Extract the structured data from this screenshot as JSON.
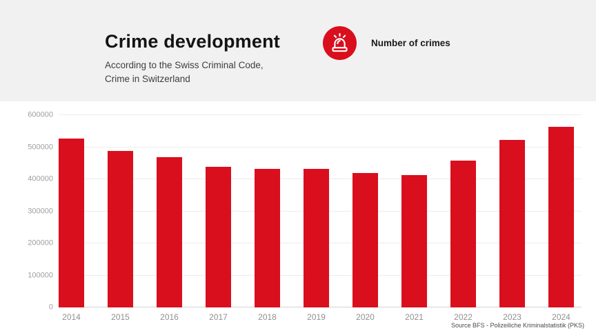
{
  "header": {
    "title": "Crime development",
    "subtitle_line1": "According to the Swiss Criminal Code,",
    "subtitle_line2": "Crime in Switzerland",
    "legend_label": "Number of crimes",
    "legend_icon": "siren-icon",
    "legend_color": "#d90f1e"
  },
  "footer": {
    "source": "Source BFS - Polizeiliche Kriminalstatistik (PKS)"
  },
  "colors": {
    "accent_red": "#d90f1e",
    "header_background": "#f1f1f1",
    "grid_line": "#ececec",
    "axis_text": "#9e9e9e"
  },
  "chart_data": {
    "type": "bar",
    "title": "Crime development",
    "subtitle": "According to the Swiss Criminal Code, Crime in Switzerland",
    "legend": "Number of crimes",
    "categories": [
      "2014",
      "2015",
      "2016",
      "2017",
      "2018",
      "2019",
      "2020",
      "2021",
      "2022",
      "2023",
      "2024"
    ],
    "values": [
      526000,
      488000,
      468000,
      438000,
      433000,
      432000,
      420000,
      414000,
      458000,
      523000,
      564000
    ],
    "xlabel": "",
    "ylabel": "",
    "ylim": [
      0,
      600000
    ],
    "yticks": [
      0,
      100000,
      200000,
      300000,
      400000,
      500000,
      600000
    ],
    "grid": true,
    "legend_position": "top",
    "bar_color": "#d90f1e",
    "source": "Source BFS - Polizeiliche Kriminalstatistik (PKS)"
  }
}
